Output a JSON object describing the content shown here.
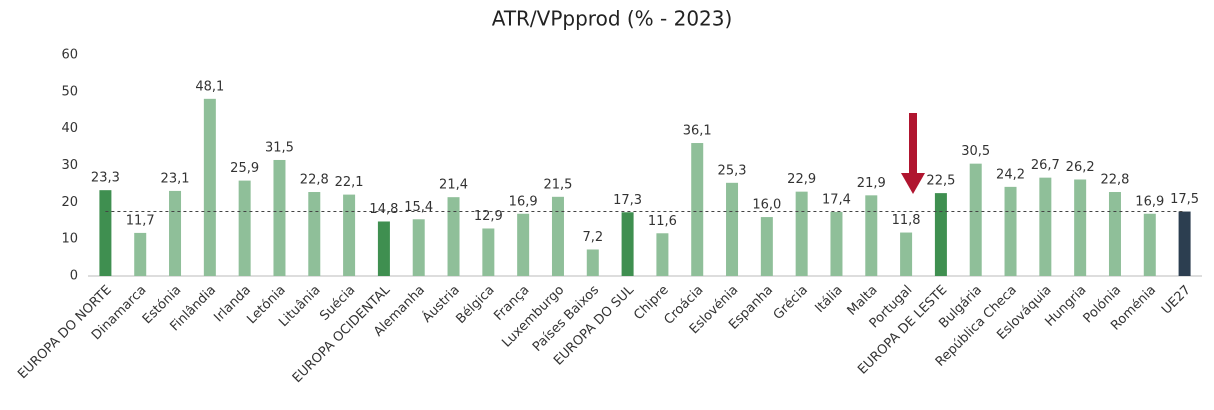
{
  "chart_data": {
    "type": "bar",
    "title": "ATR/VPpprod (% - 2023)",
    "categories": [
      "EUROPA DO NORTE",
      "Dinamarca",
      "Estónia",
      "Finlândia",
      "Irlanda",
      "Letónia",
      "Lituânia",
      "Suécia",
      "EUROPA OCIDENTAL",
      "Alemanha",
      "Áustria",
      "Bélgica",
      "França",
      "Luxemburgo",
      "Países Baixos",
      "EUROPA DO SUL",
      "Chipre",
      "Croácia",
      "Eslovénia",
      "Espanha",
      "Grécia",
      "Itália",
      "Malta",
      "Portugal",
      "EUROPA DE LESTE",
      "Bulgária",
      "República Checa",
      "Eslováquia",
      "Hungria",
      "Polónia",
      "Roménia",
      "UE27"
    ],
    "values": [
      23.3,
      11.7,
      23.1,
      48.1,
      25.9,
      31.5,
      22.8,
      22.1,
      14.8,
      15.4,
      21.4,
      12.9,
      16.9,
      21.5,
      7.2,
      17.3,
      11.6,
      36.1,
      25.3,
      16.0,
      22.9,
      17.4,
      21.9,
      11.8,
      22.5,
      30.5,
      24.2,
      26.7,
      26.2,
      22.8,
      16.9,
      17.5
    ],
    "value_labels": [
      "23,3",
      "11,7",
      "23,1",
      "48,1",
      "25,9",
      "31,5",
      "22,8",
      "22,1",
      "14,8",
      "15,4",
      "21,4",
      "12,9",
      "16,9",
      "21,5",
      "7,2",
      "17,3",
      "11,6",
      "36,1",
      "25,3",
      "16,0",
      "22,9",
      "17,4",
      "21,9",
      "11,8",
      "22,5",
      "30,5",
      "24,2",
      "26,7",
      "26,2",
      "22,8",
      "16,9",
      "17,5"
    ],
    "colors": [
      "#3f8f50",
      "#8fbf99",
      "#8fbf99",
      "#8fbf99",
      "#8fbf99",
      "#8fbf99",
      "#8fbf99",
      "#8fbf99",
      "#3f8f50",
      "#8fbf99",
      "#8fbf99",
      "#8fbf99",
      "#8fbf99",
      "#8fbf99",
      "#8fbf99",
      "#3f8f50",
      "#8fbf99",
      "#8fbf99",
      "#8fbf99",
      "#8fbf99",
      "#8fbf99",
      "#8fbf99",
      "#8fbf99",
      "#8fbf99",
      "#3f8f50",
      "#8fbf99",
      "#8fbf99",
      "#8fbf99",
      "#8fbf99",
      "#8fbf99",
      "#8fbf99",
      "#2c3e50"
    ],
    "reference_line": 17.5,
    "ylim": [
      0,
      60
    ],
    "yticks": [
      0,
      10,
      20,
      30,
      40,
      50,
      60
    ],
    "grid": false
  }
}
